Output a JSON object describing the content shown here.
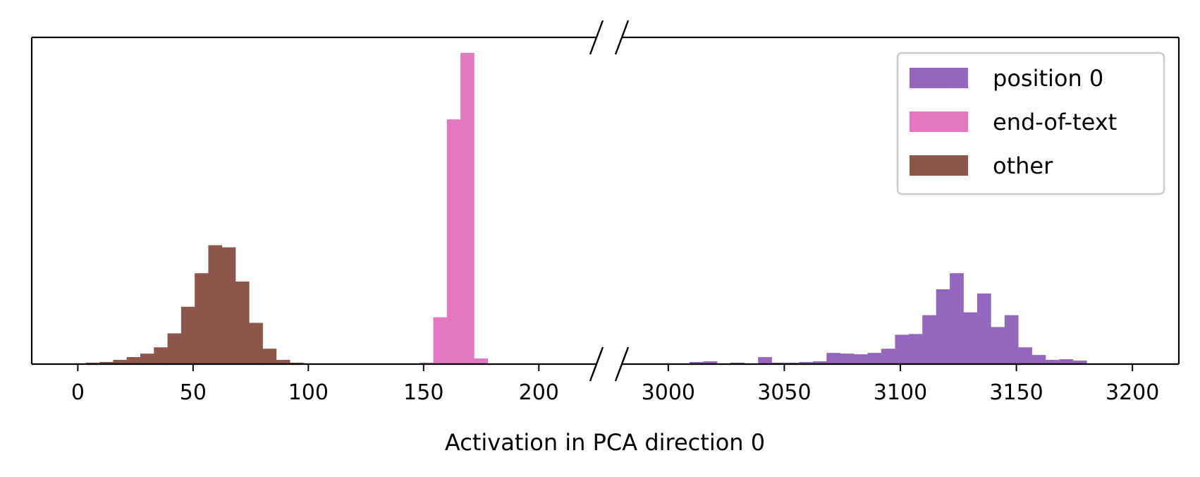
{
  "chart_data": {
    "type": "bar",
    "subtype": "histogram-broken-x-axis",
    "title": "",
    "xlabel": "Activation in PCA direction 0",
    "ylabel": "",
    "y_ticks_shown": false,
    "grid": false,
    "legend_placement": "top-right",
    "bin_width": 5.9,
    "y_max": 445,
    "x_segments": [
      {
        "xlim": [
          -20,
          225
        ],
        "ticks": [
          0,
          50,
          100,
          150,
          200
        ]
      },
      {
        "xlim": [
          2980,
          3220
        ],
        "ticks": [
          3000,
          3050,
          3100,
          3150,
          3200
        ]
      }
    ],
    "series": [
      {
        "name": "other",
        "color": "#8c564b",
        "bins": [
          [
            -2.4,
            1
          ],
          [
            3.5,
            2
          ],
          [
            9.4,
            3
          ],
          [
            15.3,
            6
          ],
          [
            21.2,
            10
          ],
          [
            27.1,
            15
          ],
          [
            33.0,
            24
          ],
          [
            38.9,
            44
          ],
          [
            44.8,
            82
          ],
          [
            50.7,
            130
          ],
          [
            56.6,
            170
          ],
          [
            62.5,
            167
          ],
          [
            68.4,
            118
          ],
          [
            74.3,
            59
          ],
          [
            80.2,
            22
          ],
          [
            86.1,
            6
          ],
          [
            92.0,
            2
          ]
        ]
      },
      {
        "name": "end-of-text",
        "color": "#e377c2",
        "bins": [
          [
            148.3,
            2
          ],
          [
            154.2,
            67
          ],
          [
            160.1,
            350
          ],
          [
            166.0,
            445
          ],
          [
            171.9,
            8
          ]
        ]
      },
      {
        "name": "position 0",
        "color": "#9467bd",
        "bins": [
          [
            3009.2,
            3
          ],
          [
            3015.1,
            4
          ],
          [
            3021.0,
            1
          ],
          [
            3026.9,
            2
          ],
          [
            3032.8,
            1
          ],
          [
            3038.7,
            10
          ],
          [
            3044.6,
            2
          ],
          [
            3050.5,
            2
          ],
          [
            3056.4,
            3
          ],
          [
            3062.3,
            4
          ],
          [
            3068.2,
            16
          ],
          [
            3074.1,
            15
          ],
          [
            3080.0,
            14
          ],
          [
            3085.9,
            16
          ],
          [
            3091.8,
            22
          ],
          [
            3097.7,
            42
          ],
          [
            3103.6,
            43
          ],
          [
            3109.5,
            70
          ],
          [
            3115.4,
            107
          ],
          [
            3121.3,
            130
          ],
          [
            3127.2,
            74
          ],
          [
            3133.1,
            101
          ],
          [
            3139.0,
            53
          ],
          [
            3144.9,
            70
          ],
          [
            3150.8,
            24
          ],
          [
            3156.7,
            13
          ],
          [
            3162.6,
            6
          ],
          [
            3168.5,
            7
          ],
          [
            3174.4,
            5
          ]
        ]
      }
    ],
    "legend_order": [
      "position 0",
      "end-of-text",
      "other"
    ]
  }
}
